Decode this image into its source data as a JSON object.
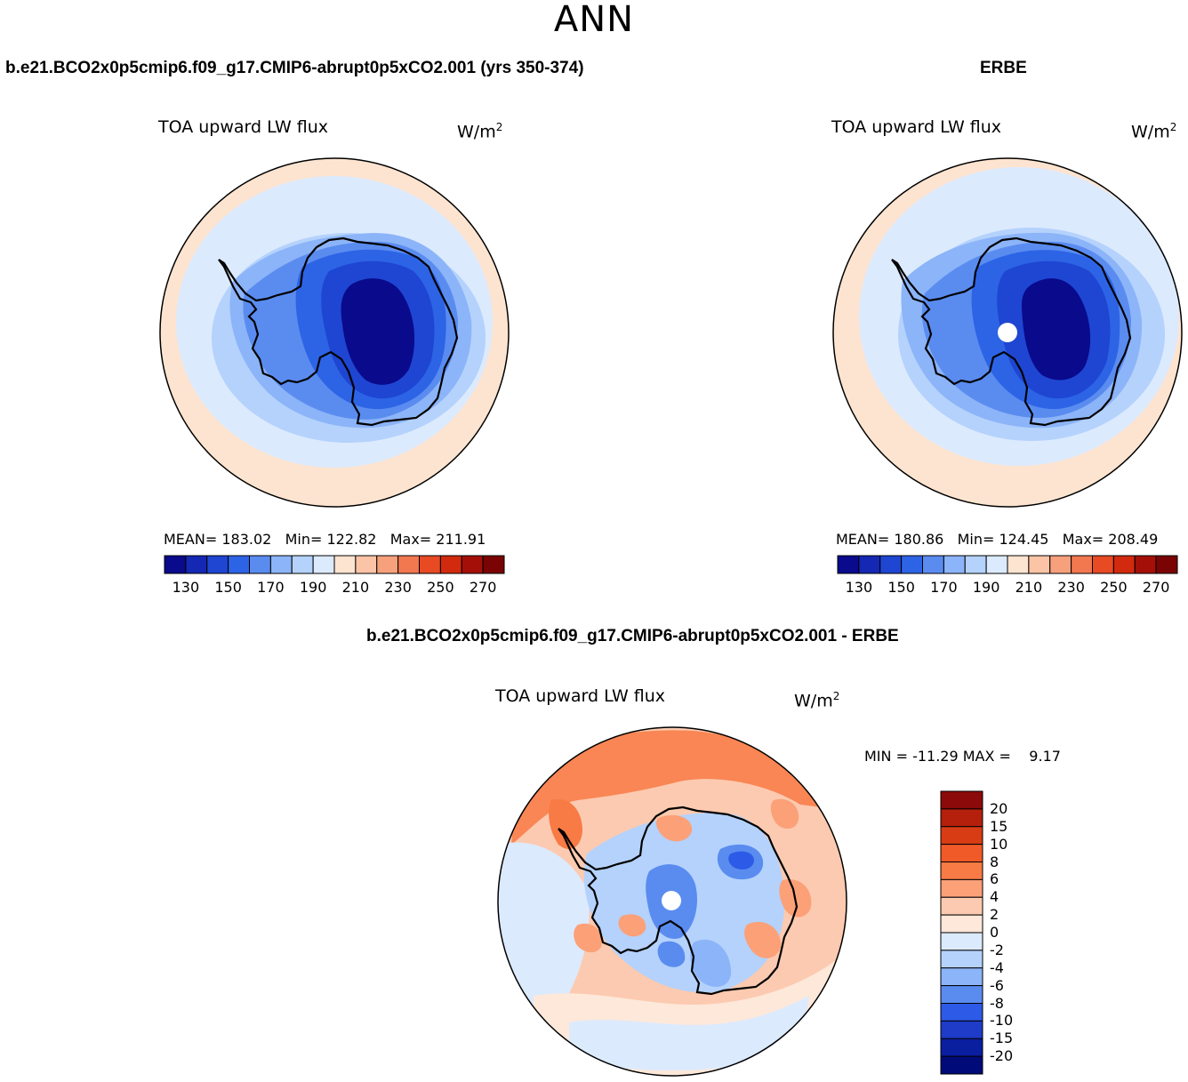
{
  "title": "ANN",
  "panels": [
    {
      "id": "model",
      "case_title": "b.e21.BCO2x0p5cmip6.f09_g17.CMIP6-abrupt0p5xCO2.001 (yrs 350-374)",
      "variable": "TOA upward LW flux",
      "units_base": "W/m",
      "units_exp": "2",
      "stats": {
        "mean_label": "MEAN=",
        "mean": "183.02",
        "min_label": "Min=",
        "min": "122.82",
        "max_label": "Max=",
        "max": "211.91"
      }
    },
    {
      "id": "obs",
      "case_title": "ERBE",
      "variable": "TOA upward LW flux",
      "units_base": "W/m",
      "units_exp": "2",
      "stats": {
        "mean_label": "MEAN=",
        "mean": "180.86",
        "min_label": "Min=",
        "min": "124.45",
        "max_label": "Max=",
        "max": "208.49"
      }
    },
    {
      "id": "diff",
      "case_title": "b.e21.BCO2x0p5cmip6.f09_g17.CMIP6-abrupt0p5xCO2.001 - ERBE",
      "variable": "TOA upward LW flux",
      "units_base": "W/m",
      "units_exp": "2",
      "minmax": {
        "min_label": "MIN =",
        "min": "-11.29",
        "max_label": "MAX =",
        "max": "9.17"
      }
    }
  ],
  "abs_colorbar": {
    "ticks": [
      "130",
      "150",
      "170",
      "190",
      "210",
      "230",
      "250",
      "270"
    ],
    "colors": [
      "#0a0a8c",
      "#1428b4",
      "#1e46d2",
      "#2d64e6",
      "#5a8cf0",
      "#8cb4f8",
      "#b4d2fc",
      "#dceafe",
      "#fde4d0",
      "#fbc4a6",
      "#f7a07c",
      "#f27850",
      "#e84a24",
      "#d22a0e",
      "#a41008",
      "#7a0404"
    ]
  },
  "diff_colorbar": {
    "ticks": [
      "20",
      "15",
      "10",
      "8",
      "6",
      "4",
      "2",
      "0",
      "-2",
      "-4",
      "-6",
      "-8",
      "-10",
      "-15",
      "-20"
    ],
    "colors": [
      "#8c0a0a",
      "#b4200c",
      "#d83c14",
      "#f05a28",
      "#f87a44",
      "#fca078",
      "#fccab0",
      "#fde8da",
      "#dceafe",
      "#b4d2fc",
      "#8cb4f8",
      "#5a8cf0",
      "#2d5ae6",
      "#1e3cc8",
      "#0a1ea0",
      "#000a78"
    ]
  },
  "map_colors": {
    "outer": "#fde4d0",
    "ring1": "#dceafe",
    "ring2": "#b4d2fc",
    "ring3": "#8cb4f8",
    "ring4": "#5a8cf0",
    "ring5": "#2d64e6",
    "ring6": "#1e46d2",
    "core": "#0a0a8c",
    "pole_hole": "#ffffff",
    "coast": "#000000"
  }
}
